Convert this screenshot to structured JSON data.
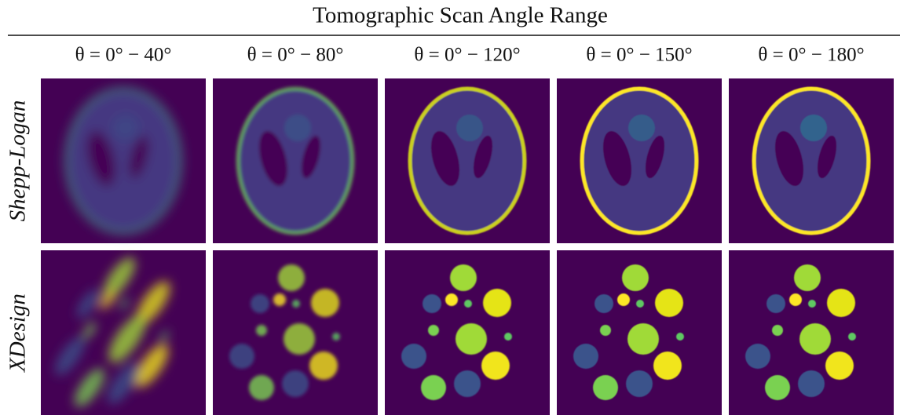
{
  "header": {
    "title": "Tomographic Scan Angle Range"
  },
  "columns": [
    "θ = 0° − 40°",
    "θ = 0° − 80°",
    "θ = 0° − 120°",
    "θ = 0° − 150°",
    "θ = 0° − 180°"
  ],
  "rows": [
    "Shepp-Logan",
    "XDesign"
  ]
}
